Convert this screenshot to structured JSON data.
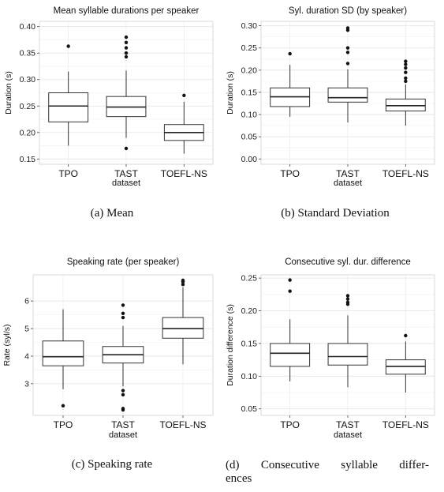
{
  "figure": {
    "captions": [
      "(a) Mean",
      "(b) Standard Deviation",
      "(c) Speaking rate",
      "(d) Consecutive syllable differences"
    ],
    "caption_d_line1": "(d) Consecutive syllable differ-",
    "caption_d_line2": "ences"
  },
  "chart_data": [
    {
      "type": "box",
      "title": "Mean syllable durations per speaker",
      "xlabel": "dataset",
      "ylabel": "Duration (s)",
      "categories": [
        "TPO",
        "TAST",
        "TOEFL-NS"
      ],
      "ylim": [
        0.14,
        0.41
      ],
      "yticks": [
        "0.15",
        "0.20",
        "0.25",
        "0.30",
        "0.35",
        "0.40"
      ],
      "ytick_values": [
        0.15,
        0.2,
        0.25,
        0.3,
        0.35,
        0.4
      ],
      "grid": true,
      "boxes": [
        {
          "min": 0.175,
          "q1": 0.22,
          "median": 0.25,
          "q3": 0.275,
          "max": 0.315,
          "outliers": [
            0.363
          ]
        },
        {
          "min": 0.19,
          "q1": 0.23,
          "median": 0.248,
          "q3": 0.268,
          "max": 0.317,
          "outliers": [
            0.17,
            0.343,
            0.35,
            0.36,
            0.37,
            0.38
          ]
        },
        {
          "min": 0.16,
          "q1": 0.185,
          "median": 0.2,
          "q3": 0.215,
          "max": 0.258,
          "outliers": [
            0.27
          ]
        }
      ]
    },
    {
      "type": "box",
      "title": "Syl. duration SD (by speaker)",
      "xlabel": "dataset",
      "ylabel": "Duration (s)",
      "categories": [
        "TPO",
        "TAST",
        "TOEFL-NS"
      ],
      "ylim": [
        -0.012,
        0.31
      ],
      "yticks": [
        "0.00",
        "0.05",
        "0.10",
        "0.15",
        "0.20",
        "0.25",
        "0.30"
      ],
      "ytick_values": [
        0,
        0.05,
        0.1,
        0.15,
        0.2,
        0.25,
        0.3
      ],
      "grid": true,
      "boxes": [
        {
          "min": 0.095,
          "q1": 0.118,
          "median": 0.14,
          "q3": 0.16,
          "max": 0.212,
          "outliers": [
            0.237
          ]
        },
        {
          "min": 0.082,
          "q1": 0.128,
          "median": 0.138,
          "q3": 0.16,
          "max": 0.202,
          "outliers": [
            0.215,
            0.24,
            0.25,
            0.29,
            0.295
          ]
        },
        {
          "min": 0.075,
          "q1": 0.108,
          "median": 0.12,
          "q3": 0.135,
          "max": 0.168,
          "outliers": [
            0.175,
            0.182,
            0.195,
            0.205,
            0.213,
            0.22
          ]
        }
      ]
    },
    {
      "type": "box",
      "title": "Speaking rate (per speaker)",
      "xlabel": "dataset",
      "ylabel": "Rate (syl/s)",
      "categories": [
        "TPO",
        "TAST",
        "TOEFL-NS"
      ],
      "ylim": [
        1.85,
        6.95
      ],
      "yticks": [
        "3",
        "4",
        "5",
        "6"
      ],
      "ytick_values": [
        3,
        4,
        5,
        6
      ],
      "grid": true,
      "boxes": [
        {
          "min": 2.8,
          "q1": 3.65,
          "median": 3.98,
          "q3": 4.55,
          "max": 5.7,
          "outliers": [
            2.2
          ]
        },
        {
          "min": 2.9,
          "q1": 3.75,
          "median": 4.05,
          "q3": 4.35,
          "max": 5.1,
          "outliers": [
            2.05,
            2.1,
            2.6,
            2.75,
            5.4,
            5.55,
            5.85
          ]
        },
        {
          "min": 3.7,
          "q1": 4.65,
          "median": 5.0,
          "q3": 5.4,
          "max": 6.5,
          "outliers": [
            6.6,
            6.7,
            6.75
          ]
        }
      ]
    },
    {
      "type": "box",
      "title": "Consecutive syl. dur. difference",
      "xlabel": "dataset",
      "ylabel": "Duration difference (s)",
      "categories": [
        "TPO",
        "TAST",
        "TOEFL-NS"
      ],
      "ylim": [
        0.04,
        0.255
      ],
      "yticks": [
        "0.05",
        "0.10",
        "0.15",
        "0.20",
        "0.25"
      ],
      "ytick_values": [
        0.05,
        0.1,
        0.15,
        0.2,
        0.25
      ],
      "grid": true,
      "boxes": [
        {
          "min": 0.092,
          "q1": 0.115,
          "median": 0.135,
          "q3": 0.15,
          "max": 0.187,
          "outliers": [
            0.23,
            0.247
          ]
        },
        {
          "min": 0.083,
          "q1": 0.117,
          "median": 0.13,
          "q3": 0.15,
          "max": 0.193,
          "outliers": [
            0.21,
            0.213,
            0.218,
            0.223
          ]
        },
        {
          "min": 0.075,
          "q1": 0.103,
          "median": 0.115,
          "q3": 0.125,
          "max": 0.153,
          "outliers": [
            0.162
          ]
        }
      ]
    }
  ]
}
